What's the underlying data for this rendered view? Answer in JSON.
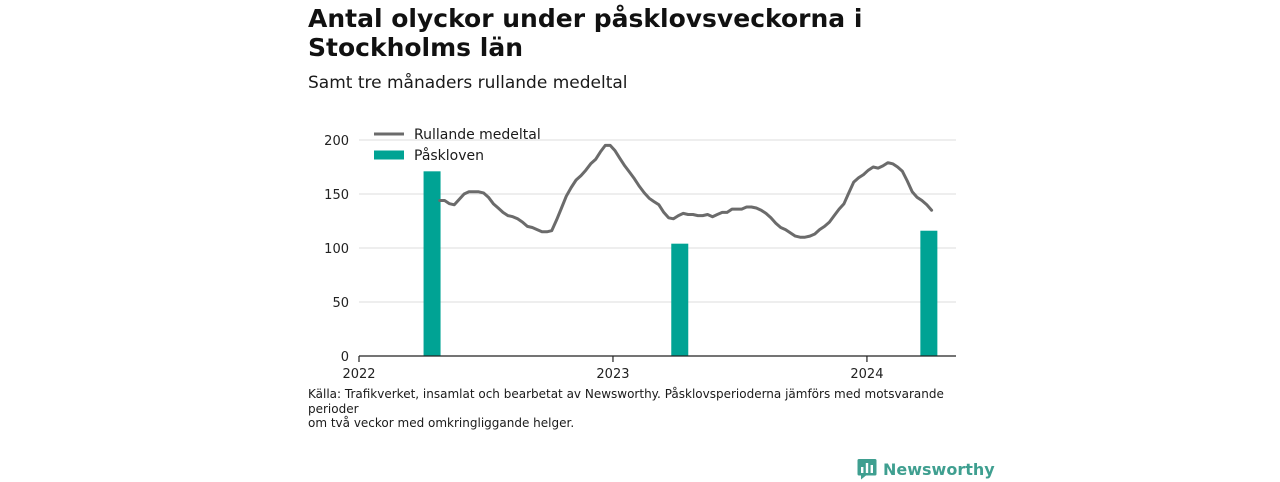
{
  "title": "Antal olyckor under påsklovsveckorna i Stockholms län",
  "subtitle": "Samt tre månaders rullande medeltal",
  "source": {
    "lines": [
      "Källa: Trafikverket, insamlat och bearbetat av Newsworthy. Påsklovsperioderna jämförs med motsvarande perioder",
      "om två veckor med omkringliggande helger."
    ]
  },
  "brand": {
    "name": "Newsworthy"
  },
  "colors": {
    "line": "#6b6b6b",
    "bar": "#00a394",
    "grid": "#dcdcdc",
    "axis": "#222222",
    "brand": "#3f9f90"
  },
  "chart_data": {
    "type": "bar",
    "ylim": [
      0,
      200
    ],
    "yticks": [
      0,
      50,
      100,
      150,
      200
    ],
    "xlim": [
      "2022-01-01",
      "2024-05-08"
    ],
    "xticks": [
      {
        "label": "2022",
        "date": "2022-01-01"
      },
      {
        "label": "2023",
        "date": "2023-01-01"
      },
      {
        "label": "2024",
        "date": "2024-01-01"
      }
    ],
    "grid": true,
    "legend_position": "top-left",
    "series": [
      {
        "name": "Påskloven",
        "type": "bar",
        "color": "#00a394",
        "points": [
          {
            "date": "2022-04-16",
            "value": 171
          },
          {
            "date": "2023-04-07",
            "value": 104
          },
          {
            "date": "2024-03-30",
            "value": 116
          }
        ]
      },
      {
        "name": "Rullande medeltal",
        "type": "line",
        "color": "#6b6b6b",
        "points": [
          {
            "date": "2022-04-27",
            "value": 144
          },
          {
            "date": "2022-05-04",
            "value": 144
          },
          {
            "date": "2022-05-11",
            "value": 141
          },
          {
            "date": "2022-05-18",
            "value": 140
          },
          {
            "date": "2022-05-25",
            "value": 145
          },
          {
            "date": "2022-06-01",
            "value": 150
          },
          {
            "date": "2022-06-08",
            "value": 152
          },
          {
            "date": "2022-06-15",
            "value": 152
          },
          {
            "date": "2022-06-22",
            "value": 152
          },
          {
            "date": "2022-06-29",
            "value": 151
          },
          {
            "date": "2022-07-06",
            "value": 147
          },
          {
            "date": "2022-07-13",
            "value": 141
          },
          {
            "date": "2022-07-20",
            "value": 137
          },
          {
            "date": "2022-07-27",
            "value": 133
          },
          {
            "date": "2022-08-03",
            "value": 130
          },
          {
            "date": "2022-08-10",
            "value": 129
          },
          {
            "date": "2022-08-17",
            "value": 127
          },
          {
            "date": "2022-08-24",
            "value": 124
          },
          {
            "date": "2022-08-31",
            "value": 120
          },
          {
            "date": "2022-09-07",
            "value": 119
          },
          {
            "date": "2022-09-14",
            "value": 117
          },
          {
            "date": "2022-09-21",
            "value": 115
          },
          {
            "date": "2022-09-28",
            "value": 115
          },
          {
            "date": "2022-10-05",
            "value": 116
          },
          {
            "date": "2022-10-12",
            "value": 126
          },
          {
            "date": "2022-10-19",
            "value": 137
          },
          {
            "date": "2022-10-26",
            "value": 148
          },
          {
            "date": "2022-11-02",
            "value": 156
          },
          {
            "date": "2022-11-09",
            "value": 163
          },
          {
            "date": "2022-11-16",
            "value": 167
          },
          {
            "date": "2022-11-23",
            "value": 172
          },
          {
            "date": "2022-11-30",
            "value": 178
          },
          {
            "date": "2022-12-07",
            "value": 182
          },
          {
            "date": "2022-12-14",
            "value": 189
          },
          {
            "date": "2022-12-21",
            "value": 195
          },
          {
            "date": "2022-12-28",
            "value": 195
          },
          {
            "date": "2023-01-04",
            "value": 190
          },
          {
            "date": "2023-01-11",
            "value": 183
          },
          {
            "date": "2023-01-18",
            "value": 176
          },
          {
            "date": "2023-01-25",
            "value": 170
          },
          {
            "date": "2023-02-01",
            "value": 164
          },
          {
            "date": "2023-02-08",
            "value": 157
          },
          {
            "date": "2023-02-15",
            "value": 151
          },
          {
            "date": "2023-02-22",
            "value": 146
          },
          {
            "date": "2023-03-01",
            "value": 143
          },
          {
            "date": "2023-03-08",
            "value": 140
          },
          {
            "date": "2023-03-15",
            "value": 133
          },
          {
            "date": "2023-03-22",
            "value": 128
          },
          {
            "date": "2023-03-29",
            "value": 127
          },
          {
            "date": "2023-04-05",
            "value": 130
          },
          {
            "date": "2023-04-12",
            "value": 132
          },
          {
            "date": "2023-04-19",
            "value": 131
          },
          {
            "date": "2023-04-26",
            "value": 131
          },
          {
            "date": "2023-05-03",
            "value": 130
          },
          {
            "date": "2023-05-10",
            "value": 130
          },
          {
            "date": "2023-05-17",
            "value": 131
          },
          {
            "date": "2023-05-24",
            "value": 129
          },
          {
            "date": "2023-05-31",
            "value": 131
          },
          {
            "date": "2023-06-07",
            "value": 133
          },
          {
            "date": "2023-06-14",
            "value": 133
          },
          {
            "date": "2023-06-21",
            "value": 136
          },
          {
            "date": "2023-06-28",
            "value": 136
          },
          {
            "date": "2023-07-05",
            "value": 136
          },
          {
            "date": "2023-07-12",
            "value": 138
          },
          {
            "date": "2023-07-19",
            "value": 138
          },
          {
            "date": "2023-07-26",
            "value": 137
          },
          {
            "date": "2023-08-02",
            "value": 135
          },
          {
            "date": "2023-08-09",
            "value": 132
          },
          {
            "date": "2023-08-16",
            "value": 128
          },
          {
            "date": "2023-08-23",
            "value": 123
          },
          {
            "date": "2023-08-30",
            "value": 119
          },
          {
            "date": "2023-09-06",
            "value": 117
          },
          {
            "date": "2023-09-13",
            "value": 114
          },
          {
            "date": "2023-09-20",
            "value": 111
          },
          {
            "date": "2023-09-27",
            "value": 110
          },
          {
            "date": "2023-10-04",
            "value": 110
          },
          {
            "date": "2023-10-11",
            "value": 111
          },
          {
            "date": "2023-10-18",
            "value": 113
          },
          {
            "date": "2023-10-25",
            "value": 117
          },
          {
            "date": "2023-11-01",
            "value": 120
          },
          {
            "date": "2023-11-08",
            "value": 124
          },
          {
            "date": "2023-11-15",
            "value": 130
          },
          {
            "date": "2023-11-22",
            "value": 136
          },
          {
            "date": "2023-11-29",
            "value": 141
          },
          {
            "date": "2023-12-06",
            "value": 151
          },
          {
            "date": "2023-12-13",
            "value": 161
          },
          {
            "date": "2023-12-20",
            "value": 165
          },
          {
            "date": "2023-12-27",
            "value": 168
          },
          {
            "date": "2024-01-03",
            "value": 172
          },
          {
            "date": "2024-01-10",
            "value": 175
          },
          {
            "date": "2024-01-17",
            "value": 174
          },
          {
            "date": "2024-01-24",
            "value": 176
          },
          {
            "date": "2024-01-31",
            "value": 179
          },
          {
            "date": "2024-02-07",
            "value": 178
          },
          {
            "date": "2024-02-14",
            "value": 175
          },
          {
            "date": "2024-02-21",
            "value": 171
          },
          {
            "date": "2024-02-28",
            "value": 162
          },
          {
            "date": "2024-03-06",
            "value": 152
          },
          {
            "date": "2024-03-13",
            "value": 147
          },
          {
            "date": "2024-03-20",
            "value": 144
          },
          {
            "date": "2024-03-27",
            "value": 140
          },
          {
            "date": "2024-04-03",
            "value": 135
          }
        ]
      }
    ]
  }
}
